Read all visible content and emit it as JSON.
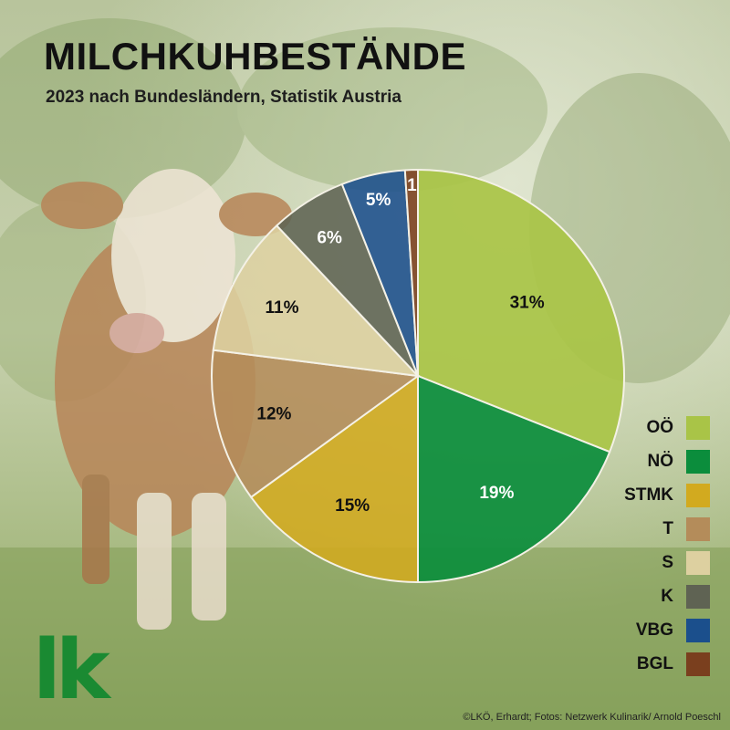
{
  "header": {
    "title": "MILCHKUHBESTÄNDE",
    "subtitle": "2023 nach Bundesländern, Statistik Austria"
  },
  "chart_data": {
    "type": "pie",
    "title": "MILCHKUHBESTÄNDE",
    "subtitle": "2023 nach Bundesländern, Statistik Austria",
    "start_angle_deg": 0,
    "direction": "clockwise",
    "legend_position": "right",
    "categories": [
      "OÖ",
      "NÖ",
      "STMK",
      "T",
      "S",
      "K",
      "VBG",
      "BGL"
    ],
    "values": [
      31,
      19,
      15,
      12,
      11,
      6,
      5,
      1
    ],
    "labels": [
      "31%",
      "19%",
      "15%",
      "12%",
      "11%",
      "6%",
      "5%",
      "1"
    ],
    "colors": [
      "#a9c447",
      "#0b8d3c",
      "#d2aa1f",
      "#b48c5a",
      "#ddd0a0",
      "#5f6353",
      "#1b4f8c",
      "#7a3f1e"
    ],
    "label_colors": [
      "#111111",
      "#ffffff",
      "#111111",
      "#111111",
      "#111111",
      "#ffffff",
      "#ffffff",
      "#ffffff"
    ]
  },
  "logo": {
    "text": "lk"
  },
  "credit": {
    "text": "©LKÖ, Erhardt; Fotos: Netzwerk Kulinarik/  Arnold Poeschl"
  }
}
